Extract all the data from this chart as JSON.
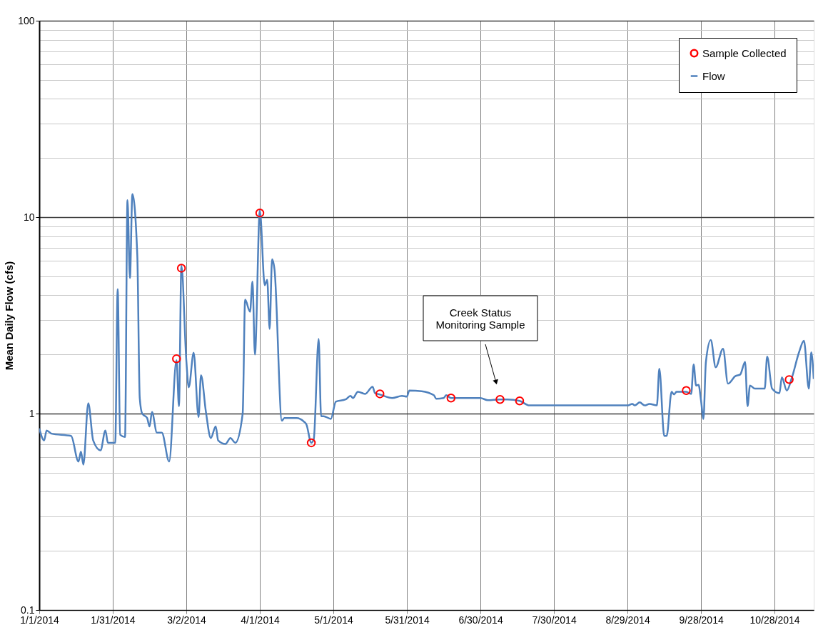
{
  "chart_data": {
    "type": "line",
    "ylabel": "Mean Daily Flow (cfs)",
    "log": "y",
    "grid": true,
    "legend": "top right",
    "xlim": [
      "2014-01-01",
      "2014-11-13"
    ],
    "xticks": [
      {
        "value": "2014-01-01",
        "label": "1/1/2014"
      },
      {
        "value": "2014-01-31",
        "label": "1/31/2014"
      },
      {
        "value": "2014-03-02",
        "label": "3/2/2014"
      },
      {
        "value": "2014-04-01",
        "label": "4/1/2014"
      },
      {
        "value": "2014-05-01",
        "label": "5/1/2014"
      },
      {
        "value": "2014-05-31",
        "label": "5/31/2014"
      },
      {
        "value": "2014-06-30",
        "label": "6/30/2014"
      },
      {
        "value": "2014-07-30",
        "label": "7/30/2014"
      },
      {
        "value": "2014-08-29",
        "label": "8/29/2014"
      },
      {
        "value": "2014-09-28",
        "label": "9/28/2014"
      },
      {
        "value": "2014-10-28",
        "label": "10/28/2014"
      }
    ],
    "ylim": [
      0.1,
      100
    ],
    "yticks": [
      0.1,
      {
        "value": 0.2,
        "label": null
      },
      {
        "value": 0.3,
        "label": null
      },
      {
        "value": 0.4,
        "label": null
      },
      {
        "value": 0.5,
        "label": null
      },
      {
        "value": 0.6,
        "label": null
      },
      {
        "value": 0.7,
        "label": null
      },
      {
        "value": 0.8,
        "label": null
      },
      {
        "value": 0.9,
        "label": null
      },
      1,
      {
        "value": 2,
        "label": null
      },
      {
        "value": 3,
        "label": null
      },
      {
        "value": 4,
        "label": null
      },
      {
        "value": 5,
        "label": null
      },
      {
        "value": 6,
        "label": null
      },
      {
        "value": 7,
        "label": null
      },
      {
        "value": 8,
        "label": null
      },
      {
        "value": 9,
        "label": null
      },
      10,
      {
        "value": 20,
        "label": null
      },
      {
        "value": 30,
        "label": null
      },
      {
        "value": 40,
        "label": null
      },
      {
        "value": 50,
        "label": null
      },
      {
        "value": 60,
        "label": null
      },
      {
        "value": 70,
        "label": null
      },
      {
        "value": 80,
        "label": null
      },
      {
        "value": 90,
        "label": null
      },
      100
    ],
    "annotations": [
      "Creek Status\nMonitoring Sample"
    ],
    "series": [
      {
        "name": "Sample Collected",
        "type": "scatter",
        "marker": "circle",
        "color": "#ff0000",
        "x": [
          "2014-02-26",
          "2014-02-28",
          "2014-04-01",
          "2014-04-22",
          "2014-05-20",
          "2014-06-18",
          "2014-07-08",
          "2014-07-16",
          "2014-09-22",
          "2014-11-03"
        ],
        "values": [
          1.9,
          5.5,
          10.5,
          0.71,
          1.26,
          1.2,
          1.18,
          1.16,
          1.31,
          1.49
        ]
      },
      {
        "name": "Flow",
        "marker": "none",
        "color": "#4f81bd",
        "x": [
          "2014-01-01",
          "2014-01-03",
          "2014-01-04",
          "2014-01-06",
          "2014-01-14",
          "2014-01-17",
          "2014-01-18",
          "2014-01-19",
          "2014-01-21",
          "2014-01-23",
          "2014-01-26",
          "2014-01-28",
          "2014-01-29",
          "2014-02-01",
          "2014-02-02",
          "2014-02-03",
          "2014-02-05",
          "2014-02-06",
          "2014-02-07",
          "2014-02-08",
          "2014-02-10",
          "2014-02-11",
          "2014-02-12",
          "2014-02-14",
          "2014-02-15",
          "2014-02-16",
          "2014-02-18",
          "2014-02-20",
          "2014-02-23",
          "2014-02-26",
          "2014-02-27",
          "2014-02-28",
          "2014-03-02",
          "2014-03-03",
          "2014-03-05",
          "2014-03-07",
          "2014-03-08",
          "2014-03-10",
          "2014-03-12",
          "2014-03-14",
          "2014-03-15",
          "2014-03-18",
          "2014-03-20",
          "2014-03-22",
          "2014-03-25",
          "2014-03-26",
          "2014-03-28",
          "2014-03-29",
          "2014-03-30",
          "2014-04-01",
          "2014-04-03",
          "2014-04-04",
          "2014-04-05",
          "2014-04-06",
          "2014-04-07",
          "2014-04-10",
          "2014-04-11",
          "2014-04-16",
          "2014-04-19",
          "2014-04-20",
          "2014-04-22",
          "2014-04-23",
          "2014-04-25",
          "2014-04-26",
          "2014-04-27",
          "2014-04-30",
          "2014-05-02",
          "2014-05-06",
          "2014-05-08",
          "2014-05-09",
          "2014-05-11",
          "2014-05-14",
          "2014-05-17",
          "2014-05-18",
          "2014-05-20",
          "2014-05-25",
          "2014-05-29",
          "2014-05-31",
          "2014-06-01",
          "2014-06-06",
          "2014-06-11",
          "2014-06-12",
          "2014-06-15",
          "2014-06-16",
          "2014-06-18",
          "2014-06-21",
          "2014-06-30",
          "2014-07-03",
          "2014-07-08",
          "2014-07-11",
          "2014-07-16",
          "2014-07-20",
          "2014-07-30",
          "2014-08-10",
          "2014-08-29",
          "2014-08-31",
          "2014-09-01",
          "2014-09-03",
          "2014-09-05",
          "2014-09-07",
          "2014-09-10",
          "2014-09-11",
          "2014-09-13",
          "2014-09-14",
          "2014-09-16",
          "2014-09-17",
          "2014-09-18",
          "2014-09-22",
          "2014-09-24",
          "2014-09-25",
          "2014-09-26",
          "2014-09-27",
          "2014-09-28",
          "2014-09-29",
          "2014-09-30",
          "2014-10-02",
          "2014-10-04",
          "2014-10-07",
          "2014-10-09",
          "2014-10-12",
          "2014-10-14",
          "2014-10-16",
          "2014-10-17",
          "2014-10-18",
          "2014-10-20",
          "2014-10-24",
          "2014-10-25",
          "2014-10-27",
          "2014-10-30",
          "2014-10-31",
          "2014-11-02",
          "2014-11-04",
          "2014-11-07",
          "2014-11-09",
          "2014-11-11",
          "2014-11-12",
          "2014-11-13"
        ],
        "values": [
          0.84,
          0.73,
          0.82,
          0.79,
          0.77,
          0.57,
          0.64,
          0.55,
          1.13,
          0.73,
          0.65,
          0.82,
          0.71,
          0.71,
          4.3,
          0.78,
          0.76,
          12.2,
          4.9,
          13.1,
          6.4,
          1.2,
          1.0,
          0.95,
          0.86,
          1.02,
          0.8,
          0.8,
          0.57,
          1.87,
          1.09,
          5.66,
          1.87,
          1.36,
          2.04,
          0.96,
          1.57,
          1.02,
          0.75,
          0.86,
          0.73,
          0.7,
          0.75,
          0.71,
          1.0,
          3.8,
          3.3,
          4.7,
          2.0,
          10.8,
          4.5,
          4.8,
          2.7,
          6.1,
          5.4,
          0.92,
          0.95,
          0.95,
          0.91,
          0.88,
          0.71,
          0.74,
          2.4,
          0.97,
          0.97,
          0.94,
          1.15,
          1.18,
          1.23,
          1.2,
          1.29,
          1.26,
          1.37,
          1.27,
          1.25,
          1.2,
          1.23,
          1.22,
          1.31,
          1.3,
          1.24,
          1.19,
          1.2,
          1.24,
          1.2,
          1.2,
          1.2,
          1.17,
          1.18,
          1.18,
          1.16,
          1.1,
          1.1,
          1.1,
          1.1,
          1.12,
          1.1,
          1.14,
          1.1,
          1.12,
          1.1,
          1.69,
          0.77,
          0.77,
          1.29,
          1.25,
          1.29,
          1.29,
          1.26,
          1.78,
          1.39,
          1.4,
          1.17,
          0.94,
          1.83,
          2.37,
          1.72,
          2.14,
          1.42,
          1.55,
          1.58,
          1.83,
          1.09,
          1.39,
          1.34,
          1.34,
          1.95,
          1.34,
          1.27,
          1.53,
          1.31,
          1.51,
          2.05,
          2.35,
          1.34,
          2.05,
          1.5
        ]
      }
    ]
  }
}
